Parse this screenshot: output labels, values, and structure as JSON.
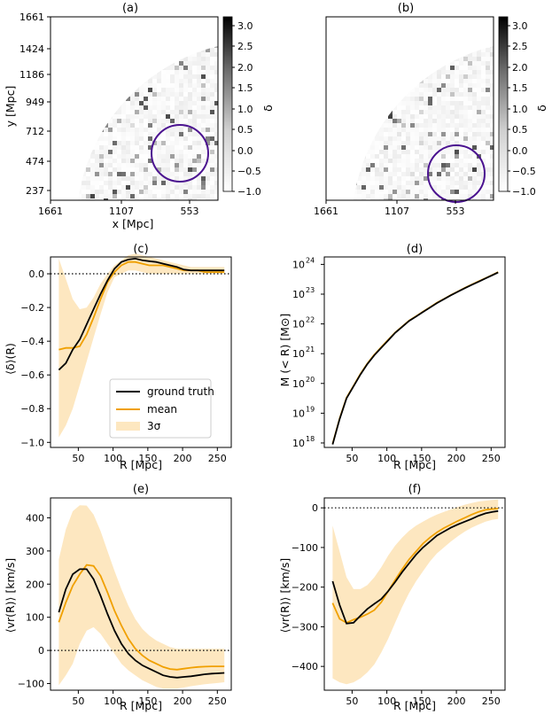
{
  "colors": {
    "gt": "#000000",
    "mean": "#f0a000",
    "band": "#fde7c0",
    "circle": "#4b1390"
  },
  "maps": {
    "xlabel": "x [Mpc]",
    "ylabel": "y [Mpc]",
    "xticks": [
      "1661",
      "1107",
      "553"
    ],
    "yticks": [
      "1661",
      "1424",
      "1186",
      "949",
      "712",
      "474",
      "237"
    ],
    "colorbar": {
      "label": "δ",
      "ticks": [
        "3.0",
        "2.5",
        "2.0",
        "1.5",
        "1.0",
        "0.5",
        "0.0",
        "−0.5",
        "−1.0"
      ],
      "range": [
        -1.0,
        3.0
      ]
    },
    "panels": [
      {
        "title": "(a)",
        "circle_center_mpc": [
          553,
          570
        ],
        "circle_radius_mpc": 120
      },
      {
        "title": "(b)",
        "circle_center_mpc": [
          553,
          330
        ],
        "circle_radius_mpc": 120
      }
    ]
  },
  "legend": {
    "gt": "ground truth",
    "mean": "mean",
    "band": "3σ"
  },
  "chart_data": [
    {
      "type": "line",
      "title": "(c)",
      "xlabel": "R [Mpc]",
      "ylabel": "⟨δ⟩(R)",
      "xlim": [
        10,
        270
      ],
      "ylim": [
        -1.03,
        0.1
      ],
      "xticks": [
        50,
        100,
        150,
        200,
        250
      ],
      "yticks": [
        0.0,
        -0.2,
        -0.4,
        -0.6,
        -0.8,
        -1.0
      ],
      "ytick_labels": [
        "0.0",
        "−0.2",
        "−0.4",
        "−0.6",
        "−0.8",
        "−1.0"
      ],
      "x": [
        22,
        32,
        42,
        52,
        62,
        72,
        82,
        92,
        102,
        112,
        122,
        132,
        142,
        152,
        162,
        172,
        182,
        192,
        202,
        212,
        222,
        232,
        242,
        252,
        260
      ],
      "series": [
        {
          "name": "ground truth",
          "values": [
            -0.57,
            -0.53,
            -0.45,
            -0.39,
            -0.3,
            -0.21,
            -0.12,
            -0.04,
            0.03,
            0.07,
            0.085,
            0.09,
            0.08,
            0.075,
            0.07,
            0.06,
            0.05,
            0.04,
            0.025,
            0.02,
            0.02,
            0.02,
            0.02,
            0.02,
            0.02
          ]
        },
        {
          "name": "mean",
          "values": [
            -0.45,
            -0.44,
            -0.44,
            -0.43,
            -0.36,
            -0.26,
            -0.15,
            -0.05,
            0.01,
            0.05,
            0.07,
            0.07,
            0.06,
            0.05,
            0.05,
            0.05,
            0.04,
            0.03,
            0.02,
            0.02,
            0.02,
            0.01,
            0.01,
            0.01,
            0.01
          ]
        }
      ],
      "band": {
        "lower": [
          -0.97,
          -0.9,
          -0.8,
          -0.66,
          -0.52,
          -0.38,
          -0.24,
          -0.11,
          -0.02,
          0.0,
          0.02,
          0.02,
          0.01,
          0.0,
          0.0,
          0.0,
          0.0,
          0.0,
          0.0,
          0.0,
          0.0,
          0.0,
          0.0,
          0.0,
          0.0
        ],
        "upper": [
          0.09,
          -0.03,
          -0.15,
          -0.21,
          -0.2,
          -0.14,
          -0.06,
          0.0,
          0.05,
          0.08,
          0.11,
          0.12,
          0.11,
          0.1,
          0.09,
          0.08,
          0.07,
          0.06,
          0.05,
          0.04,
          0.04,
          0.04,
          0.04,
          0.04,
          0.04
        ]
      },
      "hline": 0,
      "legend": "lower-left"
    },
    {
      "type": "line",
      "title": "(d)",
      "xlabel": "R [Mpc]",
      "ylabel": "M (< R) [M⊙]",
      "yscale": "log",
      "xlim": [
        10,
        270
      ],
      "ylim": [
        17.85,
        24.25
      ],
      "xticks": [
        50,
        100,
        150,
        200,
        250
      ],
      "yticks": [
        18,
        19,
        20,
        21,
        22,
        23,
        24
      ],
      "ytick_labels": [
        "10",
        "10",
        "10",
        "10",
        "10",
        "10",
        "10"
      ],
      "ytick_exponents": [
        "18",
        "19",
        "20",
        "21",
        "22",
        "23",
        "24"
      ],
      "x": [
        22,
        32,
        42,
        52,
        62,
        72,
        82,
        92,
        102,
        112,
        122,
        132,
        142,
        152,
        162,
        172,
        182,
        192,
        202,
        212,
        222,
        232,
        242,
        252,
        260
      ],
      "series": [
        {
          "name": "ground truth",
          "values": [
            17.95,
            18.8,
            19.5,
            19.9,
            20.3,
            20.65,
            20.95,
            21.2,
            21.45,
            21.7,
            21.9,
            22.1,
            22.25,
            22.4,
            22.55,
            22.7,
            22.83,
            22.96,
            23.08,
            23.2,
            23.31,
            23.42,
            23.53,
            23.64,
            23.73
          ]
        },
        {
          "name": "mean",
          "values": [
            17.97,
            18.82,
            19.52,
            19.92,
            20.32,
            20.67,
            20.97,
            21.22,
            21.47,
            21.71,
            21.91,
            22.11,
            22.26,
            22.41,
            22.56,
            22.71,
            22.84,
            22.97,
            23.09,
            23.21,
            23.32,
            23.43,
            23.54,
            23.65,
            23.74
          ]
        }
      ]
    },
    {
      "type": "line",
      "title": "(e)",
      "xlabel": "R [Mpc]",
      "ylabel": "⟨vr(R)⟩ [km/s]",
      "xlim": [
        10,
        270
      ],
      "ylim": [
        -120,
        460
      ],
      "xticks": [
        50,
        100,
        150,
        200,
        250
      ],
      "yticks": [
        400,
        300,
        200,
        100,
        0,
        -100
      ],
      "ytick_labels": [
        "400",
        "300",
        "200",
        "100",
        "0",
        "−100"
      ],
      "x": [
        22,
        32,
        42,
        52,
        62,
        72,
        82,
        92,
        102,
        112,
        122,
        132,
        142,
        152,
        162,
        172,
        182,
        192,
        202,
        212,
        222,
        232,
        242,
        252,
        260
      ],
      "series": [
        {
          "name": "ground truth",
          "values": [
            115,
            185,
            230,
            245,
            245,
            215,
            165,
            110,
            60,
            20,
            -10,
            -30,
            -45,
            -55,
            -65,
            -75,
            -80,
            -82,
            -80,
            -78,
            -75,
            -72,
            -70,
            -69,
            -68
          ]
        },
        {
          "name": "mean",
          "values": [
            85,
            145,
            195,
            230,
            258,
            255,
            225,
            175,
            120,
            75,
            35,
            5,
            -15,
            -30,
            -40,
            -50,
            -56,
            -58,
            -55,
            -52,
            -50,
            -49,
            -48,
            -48,
            -48
          ]
        }
      ],
      "band": {
        "lower": [
          -105,
          -75,
          -40,
          20,
          60,
          70,
          50,
          20,
          -10,
          -40,
          -60,
          -75,
          -90,
          -100,
          -110,
          -115,
          -115,
          -115,
          -112,
          -108,
          -105,
          -102,
          -100,
          -98,
          -96
        ],
        "upper": [
          275,
          365,
          420,
          438,
          437,
          410,
          360,
          300,
          240,
          185,
          135,
          95,
          65,
          45,
          30,
          20,
          10,
          5,
          5,
          5,
          5,
          5,
          5,
          5,
          5
        ]
      },
      "hline": 0
    },
    {
      "type": "line",
      "title": "(f)",
      "xlabel": "R [Mpc]",
      "ylabel": "⟨vr(R)⟩ [km/s]",
      "xlim": [
        10,
        270
      ],
      "ylim": [
        -460,
        25
      ],
      "xticks": [
        50,
        100,
        150,
        200,
        250
      ],
      "yticks": [
        0,
        -100,
        -200,
        -300,
        -400
      ],
      "ytick_labels": [
        "0",
        "−100",
        "−200",
        "−300",
        "−400"
      ],
      "x": [
        22,
        32,
        42,
        52,
        62,
        72,
        82,
        92,
        102,
        112,
        122,
        132,
        142,
        152,
        162,
        172,
        182,
        192,
        202,
        212,
        222,
        232,
        242,
        252,
        260
      ],
      "series": [
        {
          "name": "ground truth",
          "values": [
            -185,
            -245,
            -292,
            -290,
            -272,
            -255,
            -242,
            -230,
            -210,
            -187,
            -162,
            -140,
            -118,
            -100,
            -85,
            -70,
            -60,
            -50,
            -42,
            -35,
            -28,
            -20,
            -14,
            -10,
            -8
          ]
        },
        {
          "name": "mean",
          "values": [
            -240,
            -280,
            -290,
            -282,
            -276,
            -268,
            -258,
            -238,
            -210,
            -182,
            -155,
            -130,
            -110,
            -90,
            -75,
            -62,
            -51,
            -42,
            -33,
            -25,
            -17,
            -10,
            -5,
            -3,
            -2
          ]
        }
      ],
      "band": {
        "lower": [
          -430,
          -440,
          -445,
          -440,
          -430,
          -415,
          -395,
          -365,
          -330,
          -290,
          -250,
          -215,
          -185,
          -160,
          -135,
          -115,
          -100,
          -85,
          -72,
          -60,
          -50,
          -42,
          -35,
          -30,
          -28
        ],
        "upper": [
          -45,
          -110,
          -175,
          -205,
          -205,
          -195,
          -175,
          -150,
          -120,
          -95,
          -75,
          -58,
          -45,
          -35,
          -25,
          -17,
          -10,
          -4,
          2,
          8,
          12,
          16,
          18,
          20,
          21
        ]
      },
      "hline": 0
    }
  ]
}
